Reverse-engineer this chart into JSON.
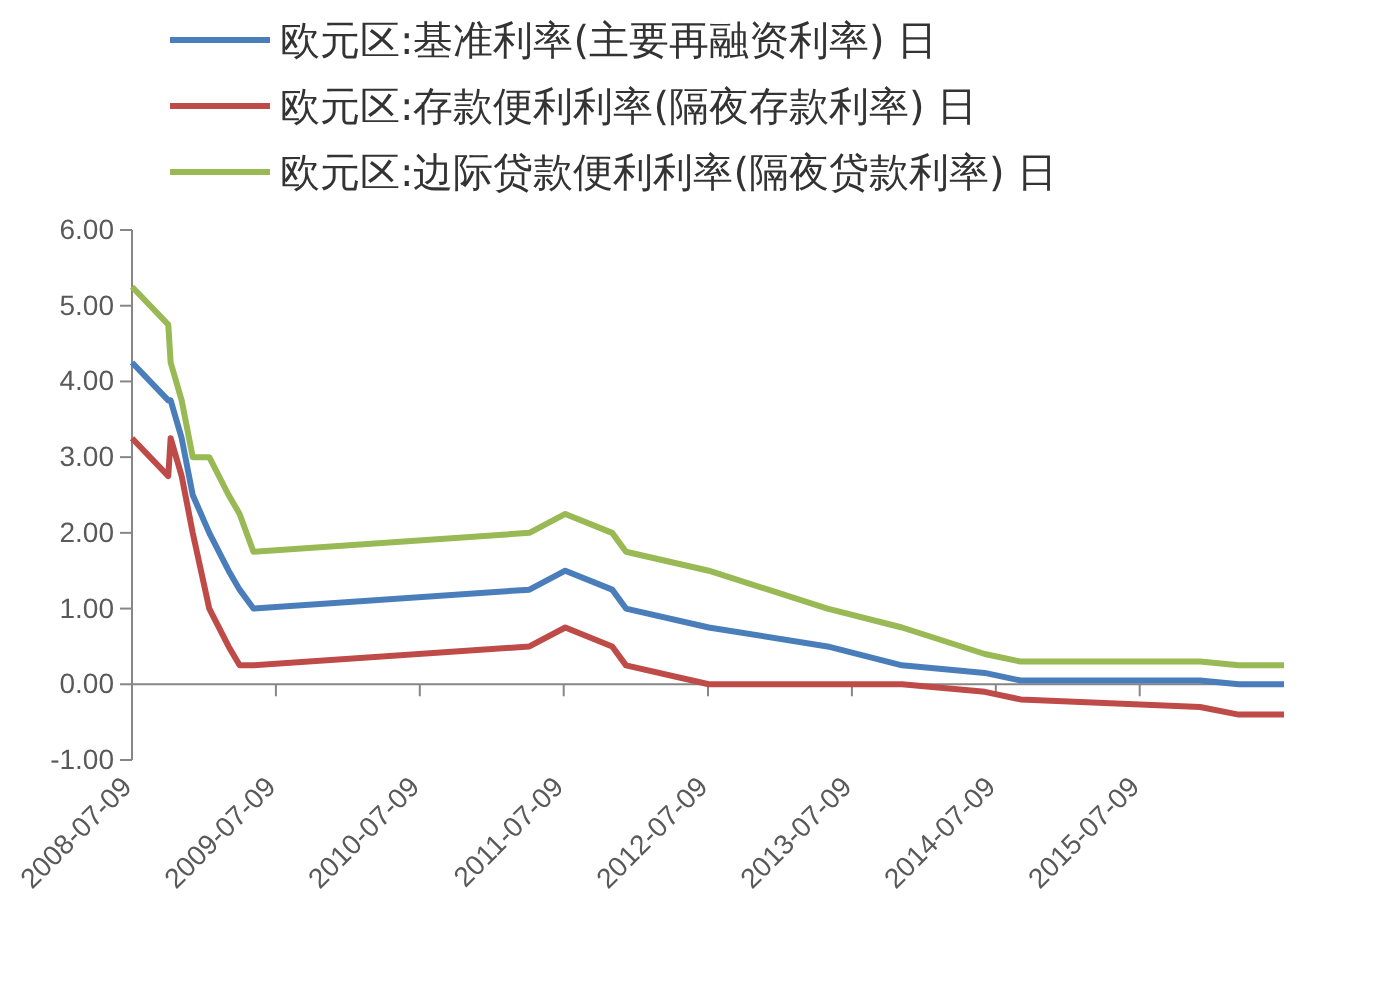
{
  "chart_data": {
    "type": "line",
    "x": [
      "2008-07-09",
      "2008-10-09",
      "2008-10-15",
      "2008-11-12",
      "2008-12-10",
      "2009-01-21",
      "2009-03-11",
      "2009-04-08",
      "2009-05-13",
      "2011-04-13",
      "2011-07-13",
      "2011-11-09",
      "2011-12-14",
      "2012-07-11",
      "2013-05-08",
      "2013-11-13",
      "2014-06-11",
      "2014-09-10",
      "2015-12-09",
      "2016-03-16",
      "2016-07-09"
    ],
    "series": [
      {
        "name": "欧元区:基准利率(主要再融资利率) 日",
        "color": "#4a7ebb",
        "values": [
          4.25,
          3.75,
          3.75,
          3.25,
          2.5,
          2.0,
          1.5,
          1.25,
          1.0,
          1.25,
          1.5,
          1.25,
          1.0,
          0.75,
          0.5,
          0.25,
          0.15,
          0.05,
          0.05,
          0.0,
          0.0
        ]
      },
      {
        "name": "欧元区:存款便利利率(隔夜存款利率) 日",
        "color": "#be4b48",
        "values": [
          3.25,
          2.75,
          3.25,
          2.75,
          2.0,
          1.0,
          0.5,
          0.25,
          0.25,
          0.5,
          0.75,
          0.5,
          0.25,
          0.0,
          0.0,
          0.0,
          -0.1,
          -0.2,
          -0.3,
          -0.4,
          -0.4
        ]
      },
      {
        "name": "欧元区:边际贷款便利利率(隔夜贷款利率) 日",
        "color": "#98b954",
        "values": [
          5.25,
          4.75,
          4.25,
          3.75,
          3.0,
          3.0,
          2.5,
          2.25,
          1.75,
          2.0,
          2.25,
          2.0,
          1.75,
          1.5,
          1.0,
          0.75,
          0.4,
          0.3,
          0.3,
          0.25,
          0.25
        ]
      }
    ],
    "xlim": [
      "2008-07-09",
      "2016-07-09"
    ],
    "xticks": [
      "2008-07-09",
      "2009-07-09",
      "2010-07-09",
      "2011-07-09",
      "2012-07-09",
      "2013-07-09",
      "2014-07-09",
      "2015-07-09"
    ],
    "ylim": [
      -1,
      6
    ],
    "yticks": [
      {
        "value": -1,
        "label": "-1.00"
      },
      {
        "value": 0,
        "label": "0.00"
      },
      {
        "value": 1,
        "label": "1.00"
      },
      {
        "value": 2,
        "label": "2.00"
      },
      {
        "value": 3,
        "label": "3.00"
      },
      {
        "value": 4,
        "label": "4.00"
      },
      {
        "value": 5,
        "label": "5.00"
      },
      {
        "value": 6,
        "label": "6.00"
      }
    ],
    "legend": "top",
    "marker": "none",
    "line_style": "solid"
  }
}
